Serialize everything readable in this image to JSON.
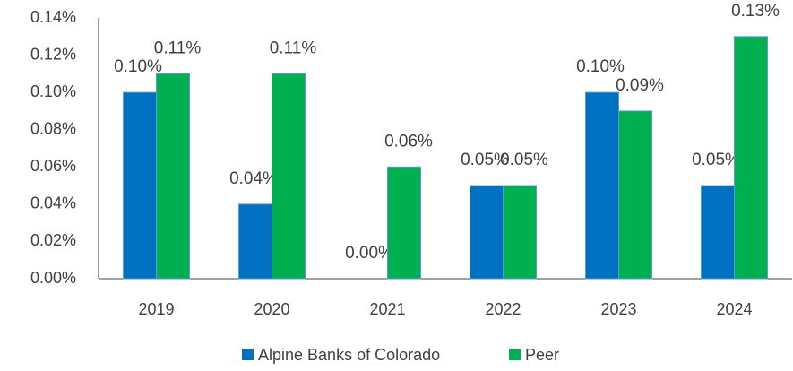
{
  "chart_data": {
    "type": "bar",
    "categories": [
      "2019",
      "2020",
      "2021",
      "2022",
      "2023",
      "2024"
    ],
    "series": [
      {
        "name": "Alpine Banks of Colorado",
        "color": "#0070c0",
        "values": [
          0.1,
          0.04,
          0.0,
          0.05,
          0.1,
          0.05
        ],
        "value_labels": [
          "0.10%",
          "0.04%",
          "0.00%",
          "0.05%",
          "0.10%",
          "0.05%"
        ]
      },
      {
        "name": "Peer",
        "color": "#00b050",
        "values": [
          0.11,
          0.11,
          0.06,
          0.05,
          0.09,
          0.13
        ],
        "value_labels": [
          "0.11%",
          "0.11%",
          "0.06%",
          "0.05%",
          "0.09%",
          "0.13%"
        ]
      }
    ],
    "ylim": [
      0,
      0.14
    ],
    "yticks": [
      {
        "value": 0,
        "label": "0.00%"
      },
      {
        "value": 0.02,
        "label": "0.02%"
      },
      {
        "value": 0.04,
        "label": "0.04%"
      },
      {
        "value": 0.06,
        "label": "0.06%"
      },
      {
        "value": 0.08,
        "label": "0.08%"
      },
      {
        "value": 0.1,
        "label": "0.10%"
      },
      {
        "value": 0.12,
        "label": "0.12%"
      },
      {
        "value": 0.14,
        "label": "0.14%"
      }
    ],
    "grid": false,
    "legend": "bottom"
  }
}
